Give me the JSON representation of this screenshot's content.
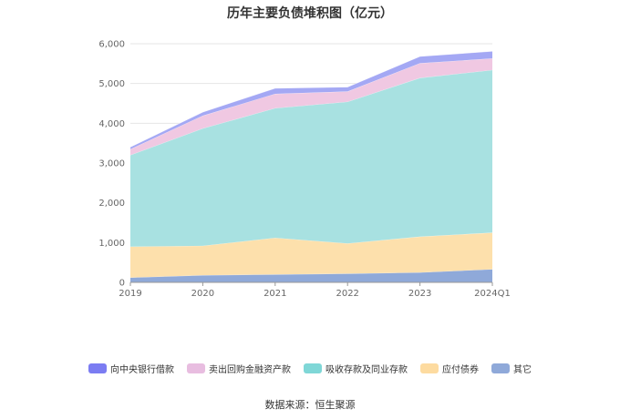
{
  "source_text": "数据来源：恒生聚源",
  "chart_data": {
    "type": "area",
    "stacked": true,
    "title": "历年主要负债堆积图（亿元）",
    "categories": [
      "2019",
      "2020",
      "2021",
      "2022",
      "2023",
      "2024Q1"
    ],
    "yticks": [
      "0",
      "1,000",
      "2,000",
      "3,000",
      "4,000",
      "5,000",
      "6,000"
    ],
    "ylim": [
      0,
      6000
    ],
    "grid": true,
    "legend_position": "bottom",
    "series": [
      {
        "name": "其它",
        "color": "#8fa9d9",
        "values": [
          120,
          180,
          200,
          220,
          250,
          330
        ]
      },
      {
        "name": "应付债券",
        "color": "#fde0ac",
        "values": [
          780,
          740,
          920,
          760,
          900,
          920
        ]
      },
      {
        "name": "吸收存款及同业存款",
        "color": "#a8e1e1",
        "values": [
          2300,
          2950,
          3260,
          3560,
          3990,
          4090
        ]
      },
      {
        "name": "卖出回购金融资产款",
        "color": "#f0c8e2",
        "values": [
          150,
          320,
          360,
          260,
          370,
          290
        ]
      },
      {
        "name": "向中央银行借款",
        "color": "#a4a8f4",
        "values": [
          50,
          90,
          140,
          110,
          170,
          180
        ]
      }
    ],
    "legend_order": [
      4,
      3,
      2,
      1,
      0
    ],
    "legend_colors": [
      "#7b7cf2",
      "#e8bde0",
      "#7fd7d7",
      "#fddba0",
      "#8fa9d9"
    ]
  }
}
